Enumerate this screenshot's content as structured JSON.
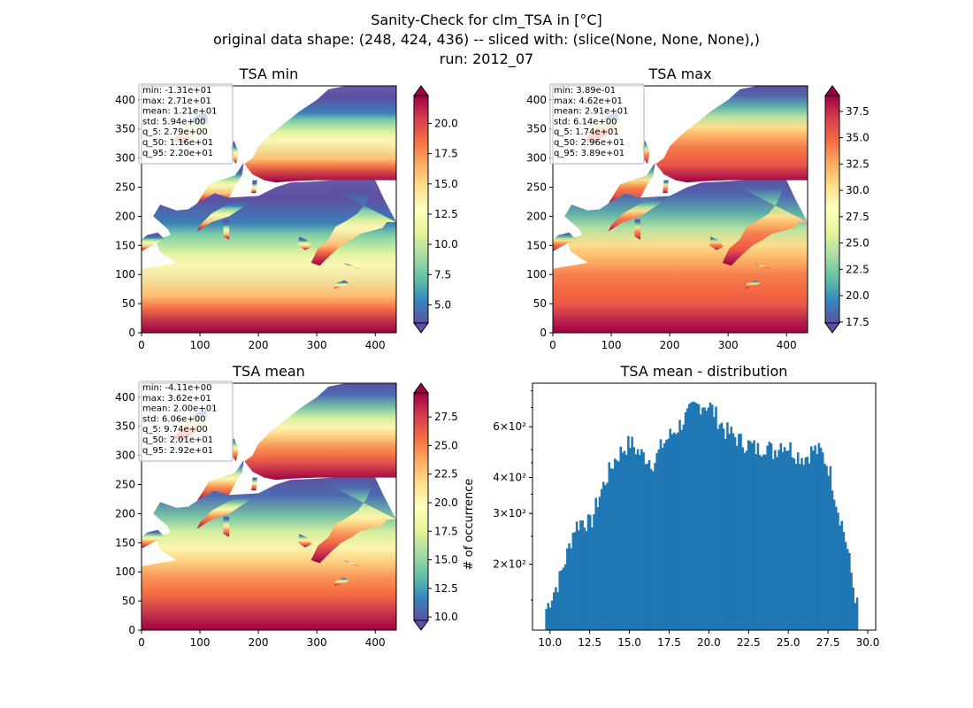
{
  "figure": {
    "title_lines": [
      "Sanity-Check for clm_TSA in [°C]",
      "original data shape: (248, 424, 436) -- sliced with: (slice(None, None, None),)",
      "run: 2012_07"
    ]
  },
  "chart_data": [
    {
      "type": "heatmap",
      "title": "TSA min",
      "xlim": [
        0,
        436
      ],
      "ylim": [
        0,
        424
      ],
      "xticks": [
        0,
        100,
        200,
        300,
        400
      ],
      "yticks": [
        0,
        50,
        100,
        150,
        200,
        250,
        300,
        350,
        400
      ],
      "colormap": "Spectral_r",
      "colorbar": {
        "range": [
          3.5,
          22.3
        ],
        "ticks": [
          "5.0",
          "7.5",
          "10.0",
          "12.5",
          "15.0",
          "17.5",
          "20.0"
        ],
        "extend": "both"
      },
      "stats": [
        "min: -1.31e+01",
        "max: 2.71e+01",
        "mean: 1.21e+01",
        "std: 5.94e+00",
        "q_5: 2.79e+00",
        "q_50: 1.16e+01",
        "q_95: 2.20e+01"
      ]
    },
    {
      "type": "heatmap",
      "title": "TSA max",
      "xlim": [
        0,
        436
      ],
      "ylim": [
        0,
        424
      ],
      "xticks": [
        0,
        100,
        200,
        300,
        400
      ],
      "yticks": [
        0,
        50,
        100,
        150,
        200,
        250,
        300,
        350,
        400
      ],
      "colormap": "Spectral_r",
      "colorbar": {
        "range": [
          17.4,
          39.0
        ],
        "ticks": [
          "17.5",
          "20.0",
          "22.5",
          "25.0",
          "27.5",
          "30.0",
          "32.5",
          "35.0",
          "37.5"
        ],
        "extend": "both"
      },
      "stats": [
        "min: 3.89e-01",
        "max: 4.62e+01",
        "mean: 2.91e+01",
        "std: 6.14e+00",
        "q_5: 1.74e+01",
        "q_50: 2.96e+01",
        "q_95: 3.89e+01"
      ]
    },
    {
      "type": "heatmap",
      "title": "TSA mean",
      "xlim": [
        0,
        436
      ],
      "ylim": [
        0,
        424
      ],
      "xticks": [
        0,
        100,
        200,
        300,
        400
      ],
      "yticks": [
        0,
        50,
        100,
        150,
        200,
        250,
        300,
        350,
        400
      ],
      "colormap": "Spectral_r",
      "colorbar": {
        "range": [
          9.7,
          29.6
        ],
        "ticks": [
          "10.0",
          "12.5",
          "15.0",
          "17.5",
          "20.0",
          "22.5",
          "25.0",
          "27.5"
        ],
        "extend": "both",
        "label": "# of occurrence"
      },
      "stats": [
        "min: -4.11e+00",
        "max: 3.62e+01",
        "mean: 2.00e+01",
        "std: 6.06e+00",
        "q_5: 9.74e+00",
        "q_50: 2.01e+01",
        "q_95: 2.92e+01"
      ]
    },
    {
      "type": "bar",
      "title": "TSA mean - distribution",
      "xlim": [
        8.9,
        30.5
      ],
      "xticks": [
        "10.0",
        "12.5",
        "15.0",
        "17.5",
        "20.0",
        "22.5",
        "25.0",
        "27.5",
        "30.0"
      ],
      "yscale": "log",
      "ylim": [
        118,
        850
      ],
      "yticks": [
        {
          "value": 200,
          "label": "2×10²"
        },
        {
          "value": 300,
          "label": "3×10²"
        },
        {
          "value": 400,
          "label": "4×10²"
        },
        {
          "value": 600,
          "label": "6×10²"
        }
      ],
      "color": "#1f77b4",
      "x": [
        9.7,
        10.5,
        11.0,
        11.5,
        12.0,
        12.5,
        13.0,
        13.5,
        14.0,
        14.5,
        15.0,
        15.5,
        16.0,
        16.5,
        17.0,
        17.5,
        18.0,
        18.5,
        19.0,
        19.5,
        20.0,
        20.5,
        21.0,
        21.5,
        22.0,
        22.5,
        23.0,
        23.5,
        24.0,
        24.5,
        25.0,
        25.5,
        26.0,
        26.5,
        27.0,
        27.5,
        28.0,
        28.5,
        29.0,
        29.3
      ],
      "values": [
        140,
        175,
        215,
        270,
        285,
        275,
        340,
        400,
        460,
        500,
        530,
        490,
        470,
        450,
        520,
        560,
        600,
        650,
        700,
        720,
        710,
        640,
        580,
        560,
        530,
        520,
        500,
        520,
        490,
        530,
        510,
        480,
        470,
        500,
        490,
        430,
        320,
        250,
        170,
        140
      ]
    }
  ]
}
